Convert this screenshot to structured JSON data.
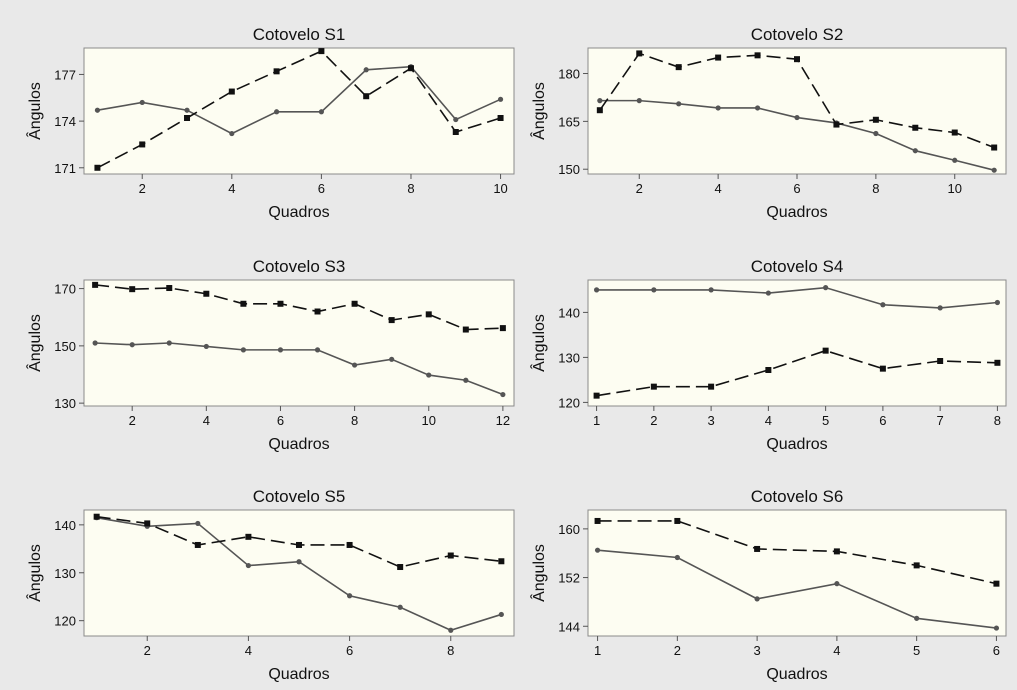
{
  "chart_data": [
    {
      "type": "line",
      "title": "Cotovelo S1",
      "xlabel": "Quadros",
      "ylabel": "Ângulos",
      "x": [
        1,
        2,
        3,
        4,
        5,
        6,
        7,
        8,
        9,
        10
      ],
      "xticks": [
        2,
        4,
        6,
        8,
        10
      ],
      "yticks": [
        171,
        174,
        177
      ],
      "xlim": [
        0.7,
        10.3
      ],
      "ylim": [
        170.6,
        178.7
      ],
      "series": [
        {
          "style": "solid",
          "values": [
            174.7,
            175.2,
            174.7,
            173.2,
            174.6,
            174.6,
            177.3,
            177.5,
            174.1,
            175.4
          ]
        },
        {
          "style": "dashed",
          "values": [
            171.0,
            172.5,
            174.2,
            175.9,
            177.2,
            178.5,
            175.6,
            177.4,
            173.3,
            174.2
          ]
        }
      ]
    },
    {
      "type": "line",
      "title": "Cotovelo S2",
      "xlabel": "Quadros",
      "ylabel": "Ângulos",
      "x": [
        1,
        2,
        3,
        4,
        5,
        6,
        7,
        8,
        9,
        10,
        11
      ],
      "xticks": [
        2,
        4,
        6,
        8,
        10
      ],
      "yticks": [
        150,
        165,
        180
      ],
      "xlim": [
        0.7,
        11.3
      ],
      "ylim": [
        148.5,
        188
      ],
      "series": [
        {
          "style": "solid",
          "values": [
            171.5,
            171.5,
            170.5,
            169.2,
            169.2,
            166.2,
            164.5,
            161.2,
            155.8,
            152.8,
            149.7
          ]
        },
        {
          "style": "dashed",
          "values": [
            168.5,
            186.3,
            182.0,
            185.0,
            185.7,
            184.5,
            164.0,
            165.5,
            163.0,
            161.5,
            156.8
          ]
        }
      ]
    },
    {
      "type": "line",
      "title": "Cotovelo S3",
      "xlabel": "Quadros",
      "ylabel": "Ângulos",
      "x": [
        1,
        2,
        3,
        4,
        5,
        6,
        7,
        8,
        9,
        10,
        11,
        12
      ],
      "xticks": [
        2,
        4,
        6,
        8,
        10,
        12
      ],
      "yticks": [
        130,
        150,
        170
      ],
      "xlim": [
        0.7,
        12.3
      ],
      "ylim": [
        129,
        173
      ],
      "series": [
        {
          "style": "solid",
          "values": [
            151.0,
            150.4,
            151.0,
            149.8,
            148.6,
            148.6,
            148.6,
            143.3,
            145.3,
            139.8,
            138.0,
            133.0
          ]
        },
        {
          "style": "dashed",
          "values": [
            171.3,
            169.8,
            170.2,
            168.2,
            164.7,
            164.7,
            162.0,
            164.7,
            159.0,
            161.0,
            155.7,
            156.2
          ]
        }
      ]
    },
    {
      "type": "line",
      "title": "Cotovelo S4",
      "xlabel": "Quadros",
      "ylabel": "Ângulos",
      "x": [
        1,
        2,
        3,
        4,
        5,
        6,
        7,
        8
      ],
      "xticks": [
        1,
        2,
        3,
        4,
        5,
        6,
        7,
        8
      ],
      "yticks": [
        120,
        130,
        140
      ],
      "xlim": [
        0.85,
        8.15
      ],
      "ylim": [
        119.2,
        147.2
      ],
      "series": [
        {
          "style": "solid",
          "values": [
            145.0,
            145.0,
            145.0,
            144.3,
            145.5,
            141.7,
            141.0,
            142.2
          ]
        },
        {
          "style": "dashed",
          "values": [
            121.5,
            123.5,
            123.5,
            127.2,
            131.5,
            127.5,
            129.2,
            128.8
          ]
        }
      ]
    },
    {
      "type": "line",
      "title": "Cotovelo S5",
      "xlabel": "Quadros",
      "ylabel": "Ângulos",
      "x": [
        1,
        2,
        3,
        4,
        5,
        6,
        7,
        8,
        9
      ],
      "xticks": [
        2,
        4,
        6,
        8
      ],
      "yticks": [
        120,
        130,
        140
      ],
      "xlim": [
        0.75,
        9.25
      ],
      "ylim": [
        116.8,
        143.1
      ],
      "series": [
        {
          "style": "solid",
          "values": [
            141.5,
            139.7,
            140.3,
            131.5,
            132.3,
            125.2,
            122.8,
            118.0,
            121.3
          ]
        },
        {
          "style": "dashed",
          "values": [
            141.7,
            140.3,
            135.8,
            137.5,
            135.8,
            135.8,
            131.2,
            133.6,
            132.4
          ]
        }
      ]
    },
    {
      "type": "line",
      "title": "Cotovelo S6",
      "xlabel": "Quadros",
      "ylabel": "Ângulos",
      "x": [
        1,
        2,
        3,
        4,
        5,
        6
      ],
      "xticks": [
        1,
        2,
        3,
        4,
        5,
        6
      ],
      "yticks": [
        144,
        152,
        160
      ],
      "xlim": [
        0.88,
        6.12
      ],
      "ylim": [
        142.4,
        163.1
      ],
      "series": [
        {
          "style": "solid",
          "values": [
            156.5,
            155.3,
            148.5,
            151.0,
            145.3,
            143.7
          ]
        },
        {
          "style": "dashed",
          "values": [
            161.3,
            161.3,
            156.7,
            156.3,
            154.0,
            151.0
          ]
        }
      ]
    }
  ]
}
